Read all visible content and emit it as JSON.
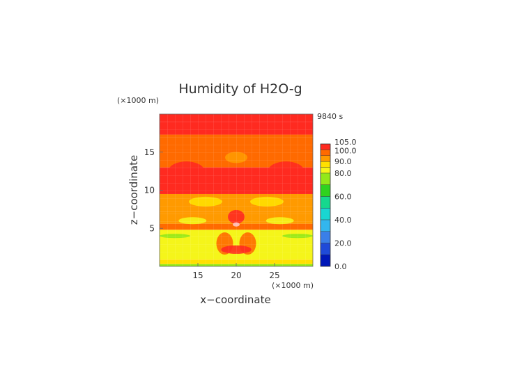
{
  "chart_data": {
    "type": "heatmap",
    "title": "Humidity of H2O-g",
    "time_label": "9840 s",
    "xlabel": "x−coordinate",
    "ylabel": "z−coordinate",
    "x_unit": "(×1000 m)",
    "z_unit": "(×1000 m)",
    "x_range": [
      10,
      30
    ],
    "z_range": [
      0,
      20
    ],
    "x_ticks": [
      "15",
      "20",
      "25"
    ],
    "z_ticks": [
      "5",
      "10",
      "15"
    ],
    "colorbar": {
      "labels": [
        "105.0",
        "100.0",
        "90.0",
        "80.0",
        "60.0",
        "40.0",
        "20.0",
        "0.0"
      ],
      "levels": [
        0,
        10,
        20,
        30,
        40,
        50,
        60,
        70,
        80,
        85,
        90,
        95,
        100,
        105
      ],
      "colors": [
        "#0018b8",
        "#1f4ad8",
        "#3a7fe8",
        "#33b6ee",
        "#19d6d2",
        "#16d88e",
        "#2fd21f",
        "#93e81a",
        "#f5f51a",
        "#ffe000",
        "#ff9a00",
        "#ff6a00",
        "#ff2a20",
        "#ffc7c7"
      ]
    },
    "bands": [
      {
        "z": [
          0.0,
          0.3
        ],
        "value": 70
      },
      {
        "z": [
          0.3,
          0.9
        ],
        "value": 88
      },
      {
        "z": [
          0.9,
          2.6
        ],
        "value": 80
      },
      {
        "z": [
          2.6,
          4.8
        ],
        "value": 84
      },
      {
        "z": [
          4.8,
          5.6
        ],
        "value": 96
      },
      {
        "z": [
          5.6,
          7.2
        ],
        "value": 90
      },
      {
        "z": [
          7.2,
          9.5
        ],
        "value": 92
      },
      {
        "z": [
          9.5,
          13.0
        ],
        "value": 100
      },
      {
        "z": [
          13.0,
          15.3
        ],
        "value": 97
      },
      {
        "z": [
          15.3,
          17.3
        ],
        "value": 98
      },
      {
        "z": [
          17.3,
          19.0
        ],
        "value": 102
      },
      {
        "z": [
          19.0,
          20.0
        ],
        "value": 100
      }
    ]
  }
}
